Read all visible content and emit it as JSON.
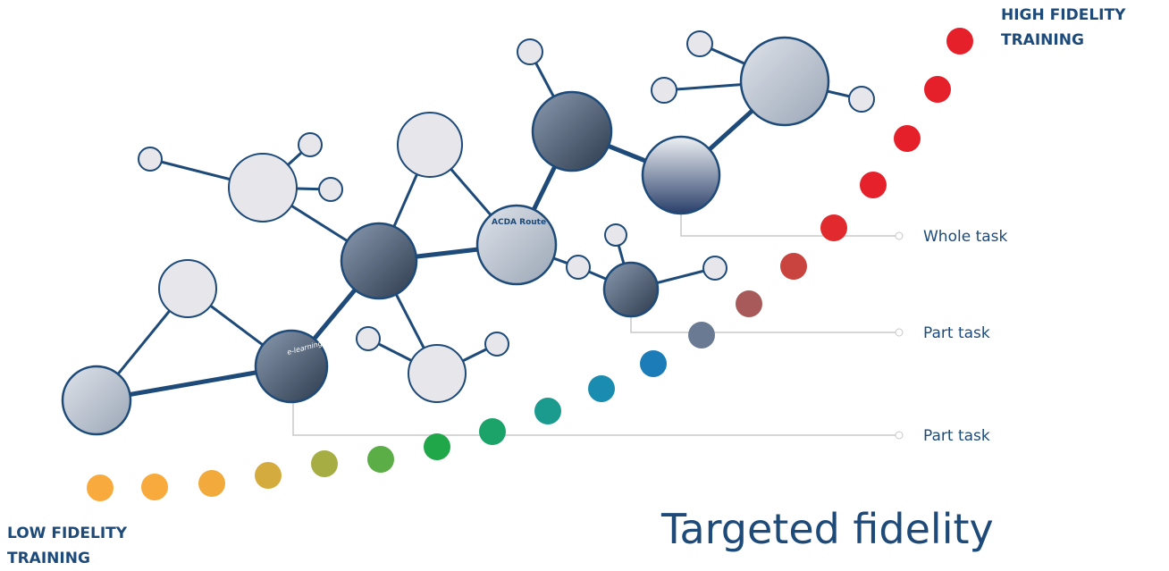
{
  "high_label": [
    "HIGH FIDELITY",
    "TRAINING"
  ],
  "low_label": [
    "LOW FIDELITY",
    "TRAINING"
  ],
  "task_labels": [
    "Whole task",
    "Part task",
    "Part task"
  ],
  "photo_texts": [
    "ACDA Route",
    "e-learning"
  ],
  "title": "Targeted fidelity"
}
